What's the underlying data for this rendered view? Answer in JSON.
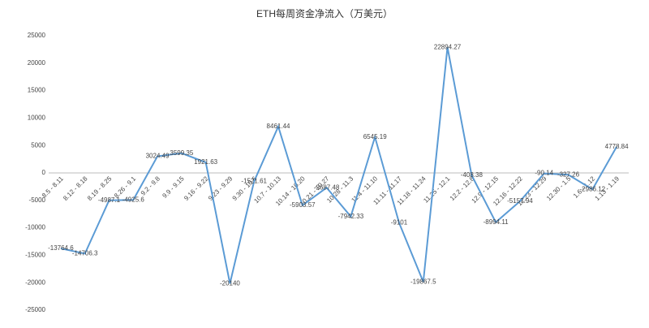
{
  "chart_data": {
    "type": "line",
    "title": "ETH每周资金净流入（万美元）",
    "categories": [
      "8.5 - 8.11",
      "8.12 - 8.18",
      "8.19 - 8.25",
      "8.26 - 9.1",
      "9.2 - 9.8",
      "9.9 - 9.15",
      "9.16 - 9.22",
      "9.23 - 9.29",
      "9.30 - 10.6",
      "10.7 - 10.13",
      "10.14 - 10.20",
      "10.21 - 10.27",
      "10.28 - 11.3",
      "11.4 - 11.10",
      "11.11 - 11.17",
      "11.18 - 11.24",
      "11.25 - 12.1",
      "12.2 - 12.8",
      "12.9 - 12.15",
      "12.16 - 12.22",
      "12.23 - 12.29",
      "12.30 - 1.5",
      "1.6 - 1.12",
      "1.13 - 1.19"
    ],
    "values": [
      -13764.6,
      -14706.3,
      -4987.1,
      -4925.6,
      3024.49,
      3599.35,
      1921.63,
      -20140,
      -1521.61,
      8461.44,
      -5903.57,
      -2687.48,
      -7942.33,
      6545.19,
      -9101,
      -19867.5,
      22894.27,
      -408.38,
      -8994.11,
      -5157.94,
      -90.14,
      -327.26,
      -2986.12,
      4778.84
    ],
    "color": "#5b9bd5",
    "ylim": [
      -25000,
      25000
    ],
    "yticks": [
      -25000,
      -20000,
      -15000,
      -10000,
      -5000,
      0,
      5000,
      10000,
      15000,
      20000,
      25000
    ],
    "grid": false
  }
}
